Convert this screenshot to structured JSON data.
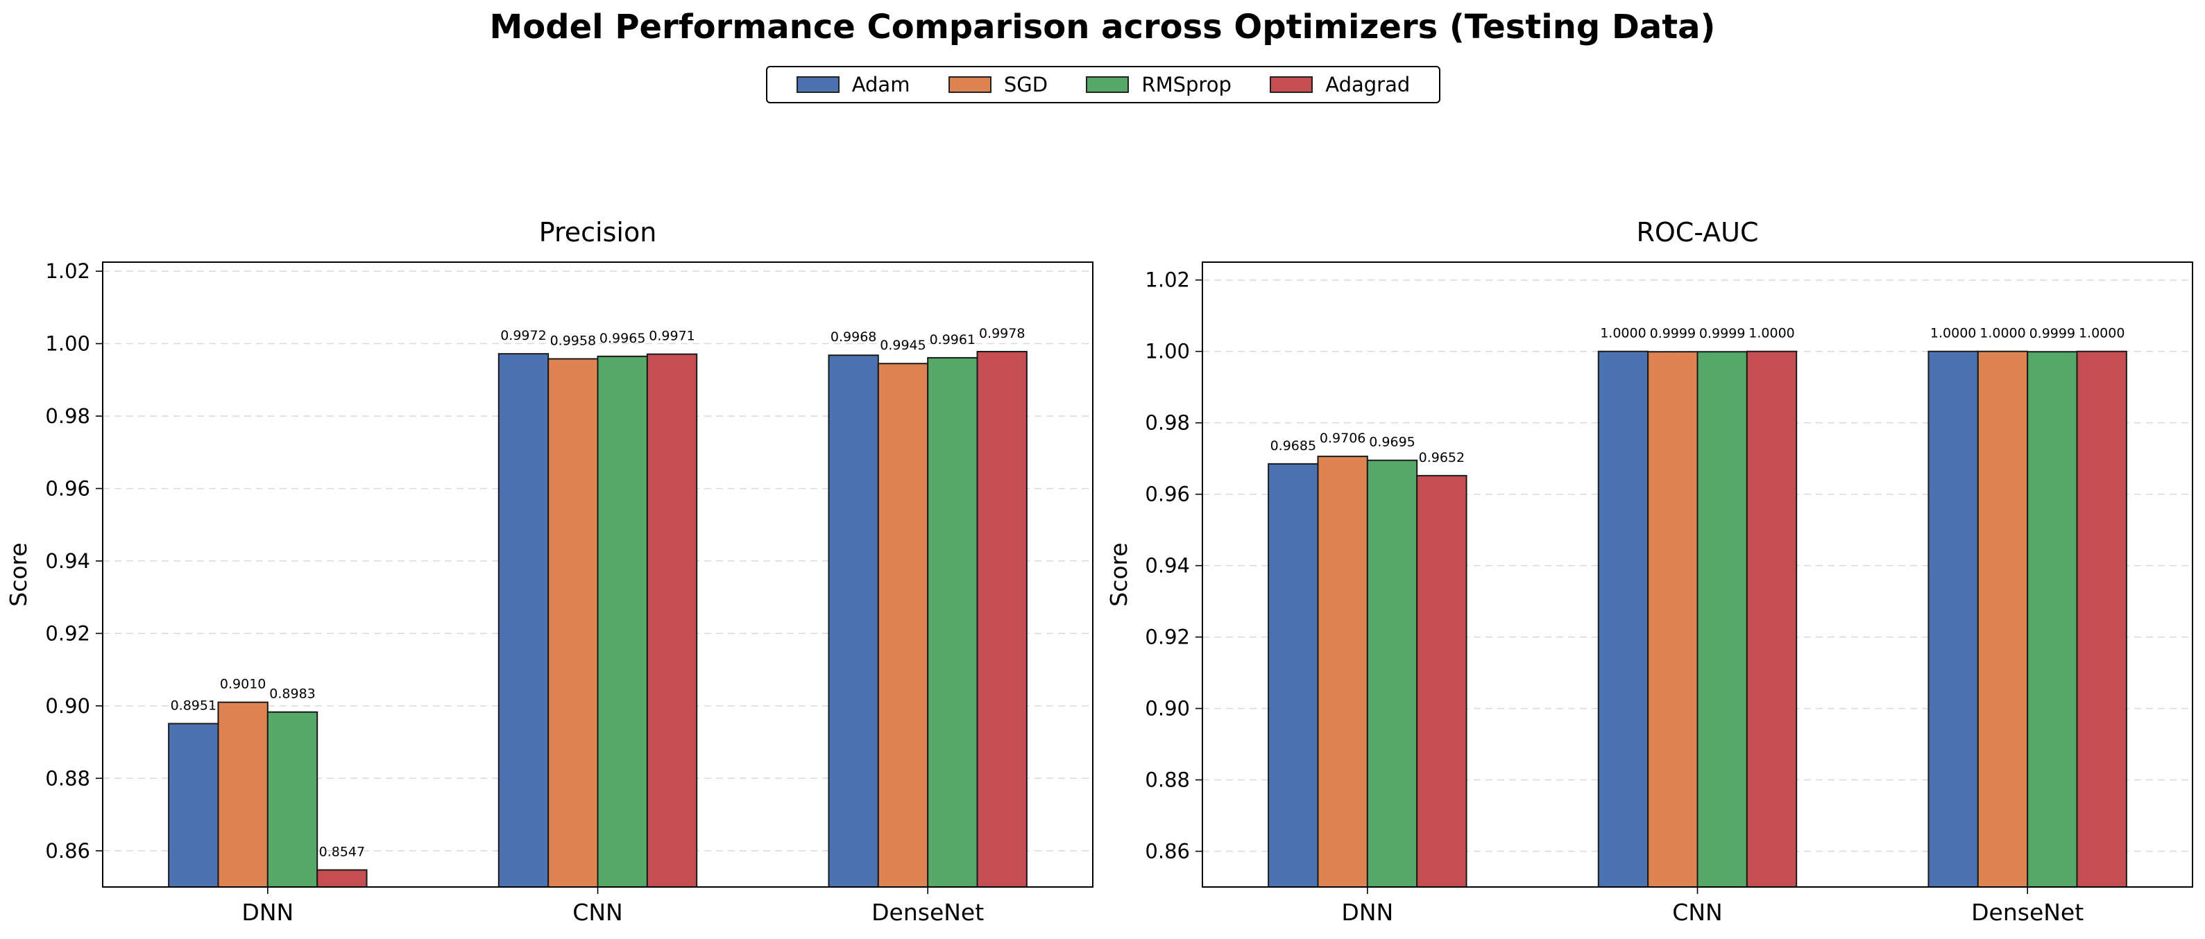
{
  "title": "Model Performance Comparison across Optimizers (Testing Data)",
  "legend": {
    "items": [
      {
        "label": "Adam",
        "color": "#4c72b0"
      },
      {
        "label": "SGD",
        "color": "#dd8452"
      },
      {
        "label": "RMSprop",
        "color": "#55a868"
      },
      {
        "label": "Adagrad",
        "color": "#c44e52"
      }
    ],
    "placement": "top-center"
  },
  "chart_data": [
    {
      "type": "bar",
      "title": "Precision",
      "xlabel": "",
      "ylabel": "Score",
      "ylim": [
        0.85,
        1.0225
      ],
      "yticks": [
        "0.86",
        "0.88",
        "0.90",
        "0.92",
        "0.94",
        "0.96",
        "0.98",
        "1.00",
        "1.02"
      ],
      "grid": true,
      "categories": [
        "DNN",
        "CNN",
        "DenseNet"
      ],
      "series": [
        {
          "name": "Adam",
          "values": [
            0.8951,
            0.9972,
            0.9968
          ],
          "labels": [
            "0.8951",
            "0.9972",
            "0.9968"
          ]
        },
        {
          "name": "SGD",
          "values": [
            0.901,
            0.9958,
            0.9945
          ],
          "labels": [
            "0.9010",
            "0.9958",
            "0.9945"
          ]
        },
        {
          "name": "RMSprop",
          "values": [
            0.8983,
            0.9965,
            0.9961
          ],
          "labels": [
            "0.8983",
            "0.9965",
            "0.9961"
          ]
        },
        {
          "name": "Adagrad",
          "values": [
            0.8547,
            0.9971,
            0.9978
          ],
          "labels": [
            "0.8547",
            "0.9971",
            "0.9978"
          ]
        }
      ]
    },
    {
      "type": "bar",
      "title": "ROC-AUC",
      "xlabel": "",
      "ylabel": "Score",
      "ylim": [
        0.85,
        1.025
      ],
      "yticks": [
        "0.86",
        "0.88",
        "0.90",
        "0.92",
        "0.94",
        "0.96",
        "0.98",
        "1.00",
        "1.02"
      ],
      "grid": true,
      "categories": [
        "DNN",
        "CNN",
        "DenseNet"
      ],
      "series": [
        {
          "name": "Adam",
          "values": [
            0.9685,
            1.0,
            1.0
          ],
          "labels": [
            "0.9685",
            "1.0000",
            "1.0000"
          ]
        },
        {
          "name": "SGD",
          "values": [
            0.9706,
            0.9999,
            1.0
          ],
          "labels": [
            "0.9706",
            "0.9999",
            "1.0000"
          ]
        },
        {
          "name": "RMSprop",
          "values": [
            0.9695,
            0.9999,
            0.9999
          ],
          "labels": [
            "0.9695",
            "0.9999",
            "0.9999"
          ]
        },
        {
          "name": "Adagrad",
          "values": [
            0.9652,
            1.0,
            1.0
          ],
          "labels": [
            "0.9652",
            "1.0000",
            "1.0000"
          ]
        }
      ]
    }
  ]
}
